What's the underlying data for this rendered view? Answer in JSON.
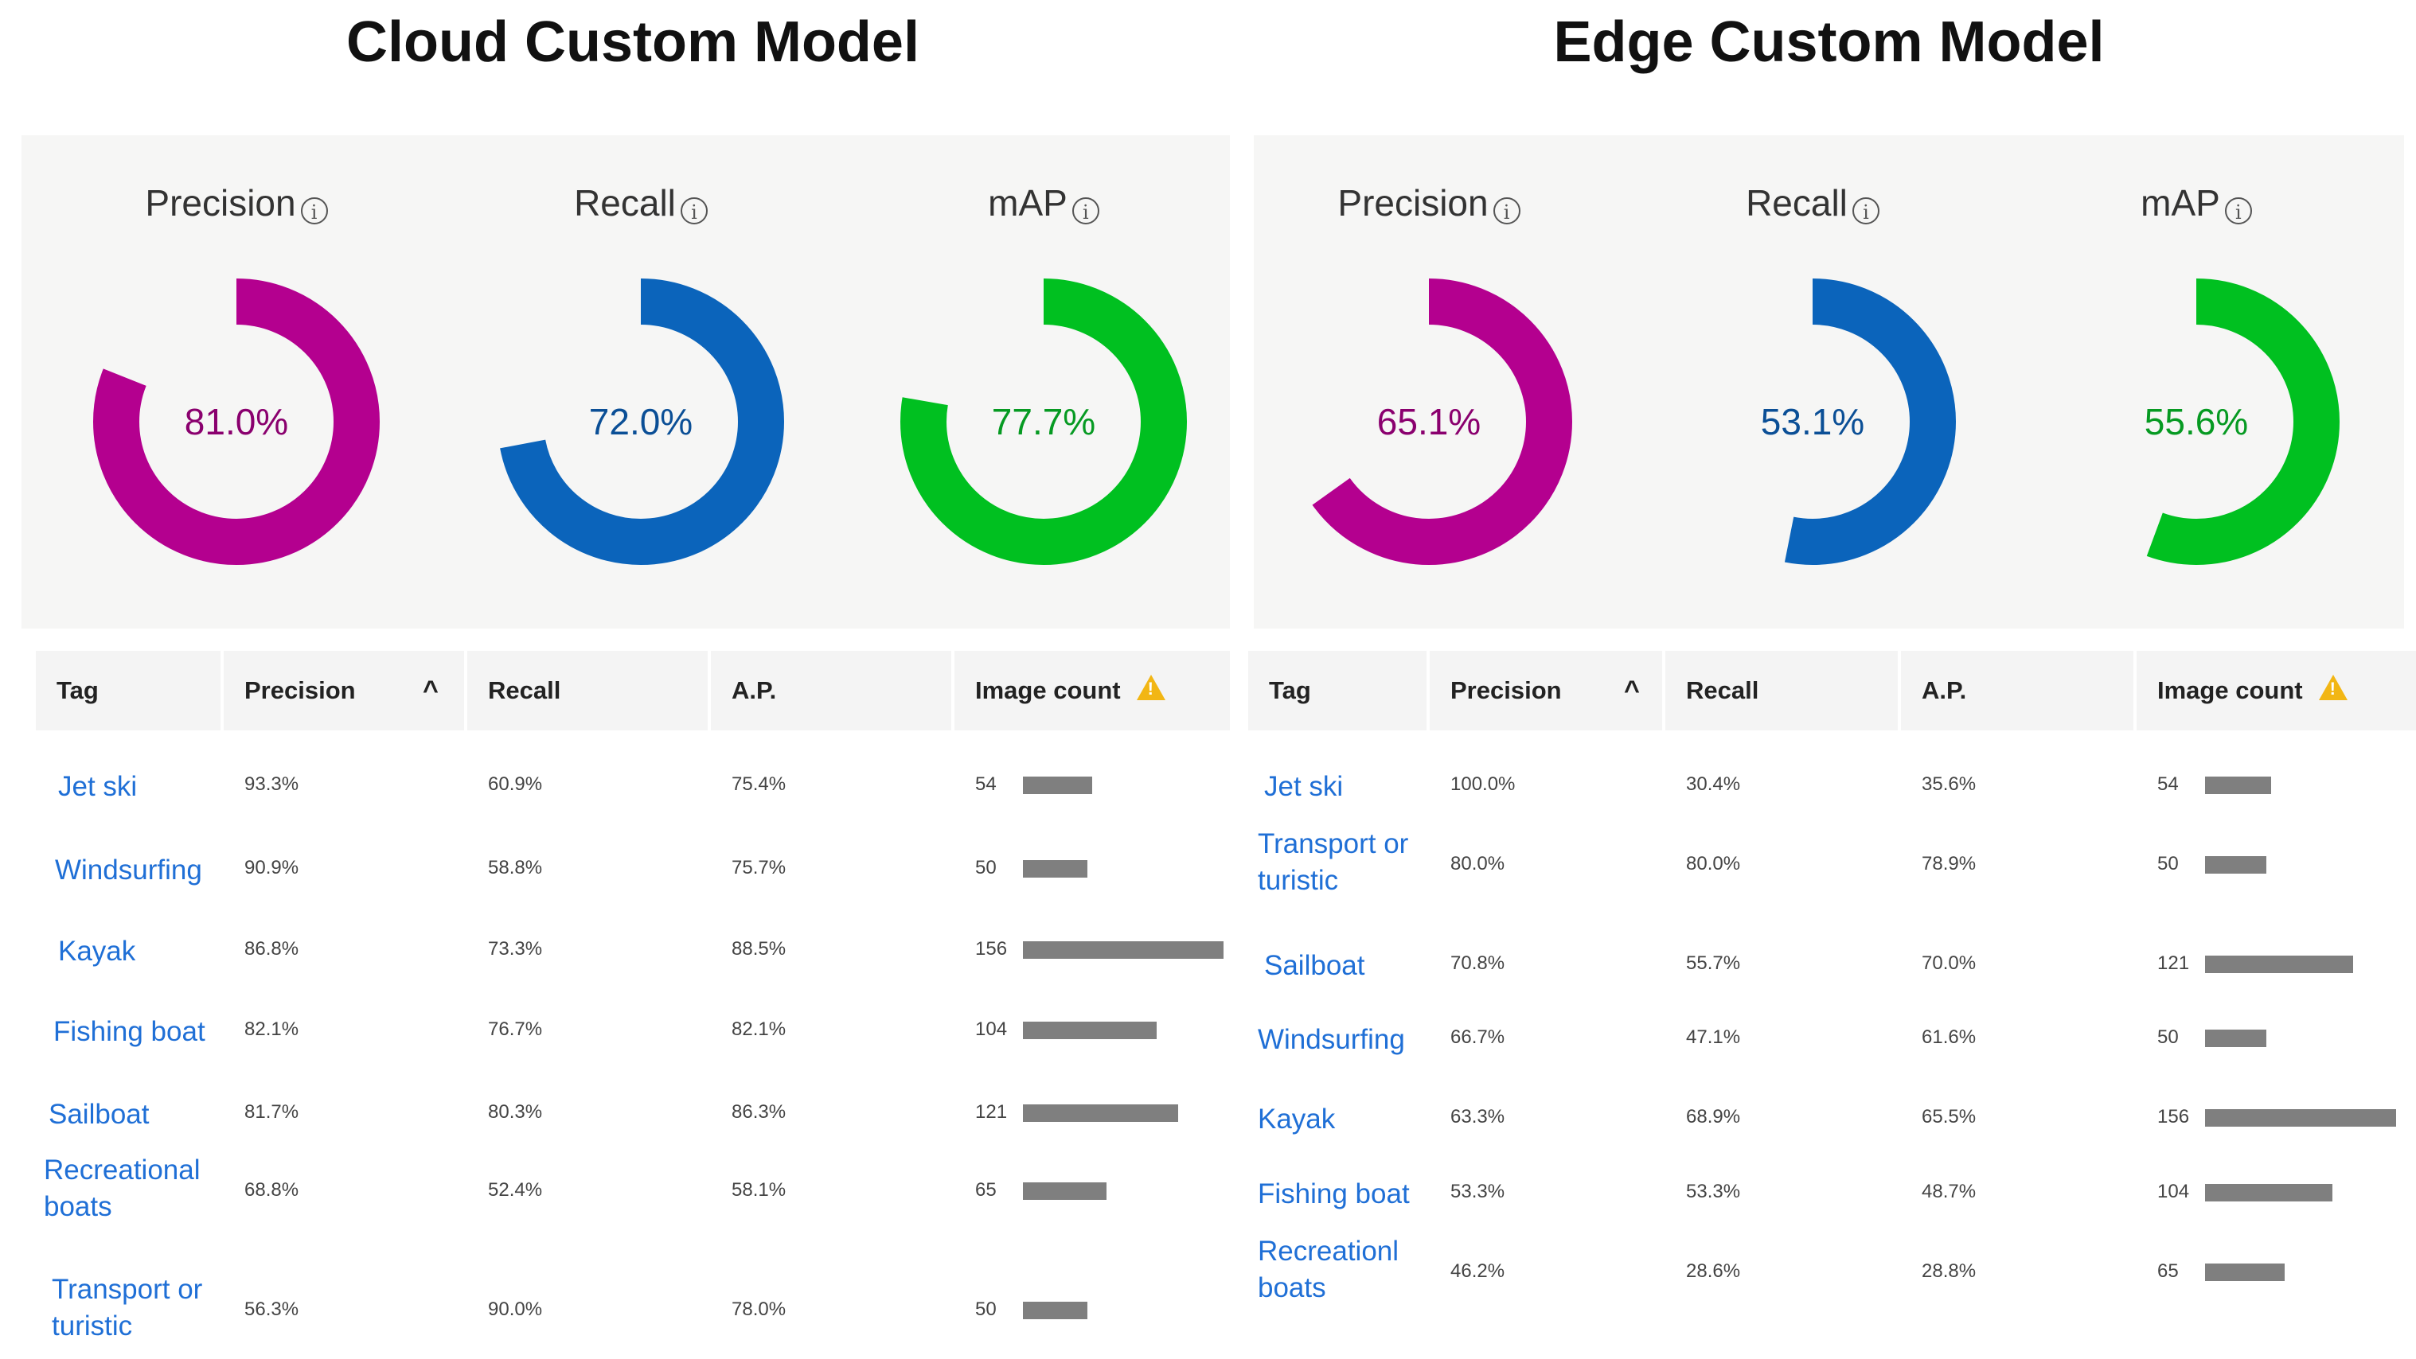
{
  "models": [
    {
      "id": "cloud",
      "title": "Cloud Custom Model",
      "metrics": [
        {
          "label": "Precision",
          "value": "81.0%",
          "fraction": 0.81,
          "color": "#b4008f"
        },
        {
          "label": "Recall",
          "value": "72.0%",
          "fraction": 0.72,
          "color": "#0b64bb"
        },
        {
          "label": "mAP",
          "value": "77.7%",
          "fraction": 0.777,
          "color": "#00c020"
        }
      ],
      "table": {
        "headers": {
          "tag": "Tag",
          "precision": "Precision",
          "recall": "Recall",
          "ap": "A.P.",
          "image_count": "Image count"
        },
        "rows": [
          {
            "tag": [
              "Jet ski"
            ],
            "precision": "93.3%",
            "recall": "60.9%",
            "ap": "75.4%",
            "count": "54",
            "count_value": 54
          },
          {
            "tag": [
              "Windsurfing"
            ],
            "precision": "90.9%",
            "recall": "58.8%",
            "ap": "75.7%",
            "count": "50",
            "count_value": 50
          },
          {
            "tag": [
              "Kayak"
            ],
            "precision": "86.8%",
            "recall": "73.3%",
            "ap": "88.5%",
            "count": "156",
            "count_value": 156
          },
          {
            "tag": [
              "Fishing boat"
            ],
            "precision": "82.1%",
            "recall": "76.7%",
            "ap": "82.1%",
            "count": "104",
            "count_value": 104
          },
          {
            "tag": [
              "Sailboat"
            ],
            "precision": "81.7%",
            "recall": "80.3%",
            "ap": "86.3%",
            "count": "121",
            "count_value": 121
          },
          {
            "tag": [
              "Recreational",
              "boats"
            ],
            "precision": "68.8%",
            "recall": "52.4%",
            "ap": "58.1%",
            "count": "65",
            "count_value": 65
          },
          {
            "tag": [
              "Transport or",
              "turistic"
            ],
            "precision": "56.3%",
            "recall": "90.0%",
            "ap": "78.0%",
            "count": "50",
            "count_value": 50
          }
        ]
      }
    },
    {
      "id": "edge",
      "title": "Edge Custom Model",
      "metrics": [
        {
          "label": "Precision",
          "value": "65.1%",
          "fraction": 0.651,
          "color": "#b4008f"
        },
        {
          "label": "Recall",
          "value": "53.1%",
          "fraction": 0.531,
          "color": "#0b64bb"
        },
        {
          "label": "mAP",
          "value": "55.6%",
          "fraction": 0.556,
          "color": "#00c020"
        }
      ],
      "table": {
        "headers": {
          "tag": "Tag",
          "precision": "Precision",
          "recall": "Recall",
          "ap": "A.P.",
          "image_count": "Image count"
        },
        "rows": [
          {
            "tag": [
              "Jet ski"
            ],
            "precision": "100.0%",
            "recall": "30.4%",
            "ap": "35.6%",
            "count": "54",
            "count_value": 54
          },
          {
            "tag": [
              "Transport or",
              "turistic"
            ],
            "precision": "80.0%",
            "recall": "80.0%",
            "ap": "78.9%",
            "count": "50",
            "count_value": 50
          },
          {
            "tag": [
              "Sailboat"
            ],
            "precision": "70.8%",
            "recall": "55.7%",
            "ap": "70.0%",
            "count": "121",
            "count_value": 121
          },
          {
            "tag": [
              "Windsurfing"
            ],
            "precision": "66.7%",
            "recall": "47.1%",
            "ap": "61.6%",
            "count": "50",
            "count_value": 50
          },
          {
            "tag": [
              "Kayak"
            ],
            "precision": "63.3%",
            "recall": "68.9%",
            "ap": "65.5%",
            "count": "156",
            "count_value": 156
          },
          {
            "tag": [
              "Fishing boat"
            ],
            "precision": "53.3%",
            "recall": "53.3%",
            "ap": "48.7%",
            "count": "104",
            "count_value": 104
          },
          {
            "tag": [
              "Recreationl",
              "boats"
            ],
            "precision": "46.2%",
            "recall": "28.6%",
            "ap": "28.8%",
            "count": "65",
            "count_value": 65
          }
        ]
      }
    }
  ],
  "icons": {
    "info": "info-icon",
    "sort": "sort-ascending-icon",
    "warning": "warning-icon"
  }
}
